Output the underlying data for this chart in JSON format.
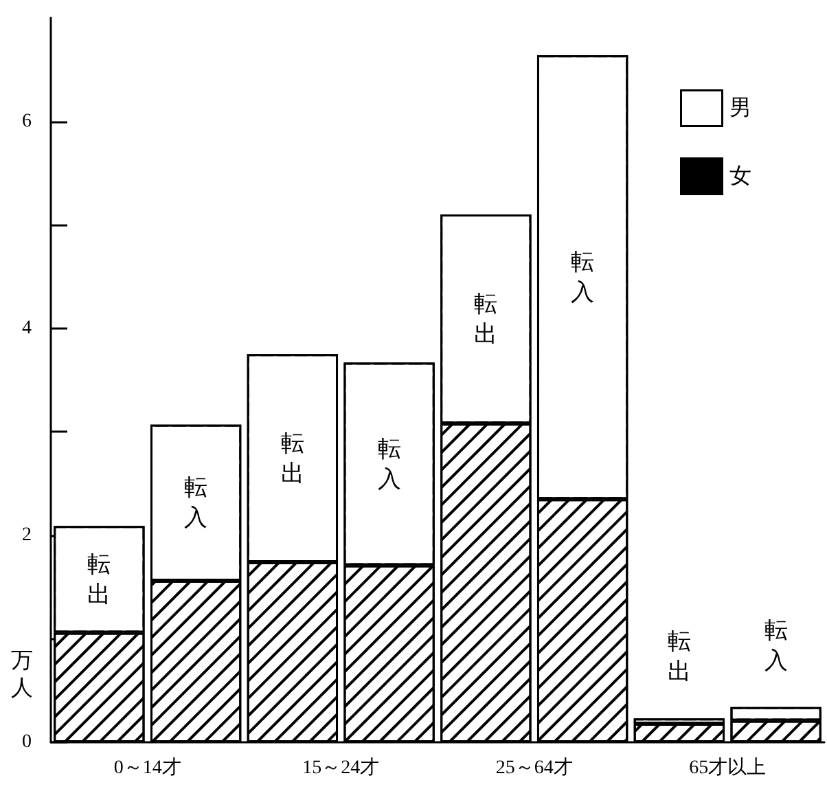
{
  "chart_data": {
    "type": "bar",
    "stacked": true,
    "ylabel": "万人",
    "categories": [
      "0～14才",
      null,
      "15～24才",
      null,
      "25～64才",
      null,
      "65才以上",
      null
    ],
    "series": [
      {
        "name": "女",
        "color": "#000000",
        "values": [
          1.06,
          1.56,
          1.74,
          1.71,
          3.08,
          2.35,
          0.18,
          0.21
        ]
      },
      {
        "name": "男",
        "color": "#ffffff",
        "values": [
          1.03,
          1.51,
          2.01,
          1.96,
          2.02,
          4.29,
          0.05,
          0.13
        ]
      }
    ],
    "ylim": [
      0,
      7
    ],
    "yticks": [
      0,
      {
        "value": 1,
        "label": null
      },
      2,
      {
        "value": 3,
        "label": null
      },
      4,
      {
        "value": 5,
        "label": null
      },
      6
    ],
    "legend": "top right",
    "grid": false,
    "annotations": [
      "転出",
      "転入",
      "転出",
      "転入",
      "転出",
      "転入",
      "転出",
      "転入"
    ]
  }
}
